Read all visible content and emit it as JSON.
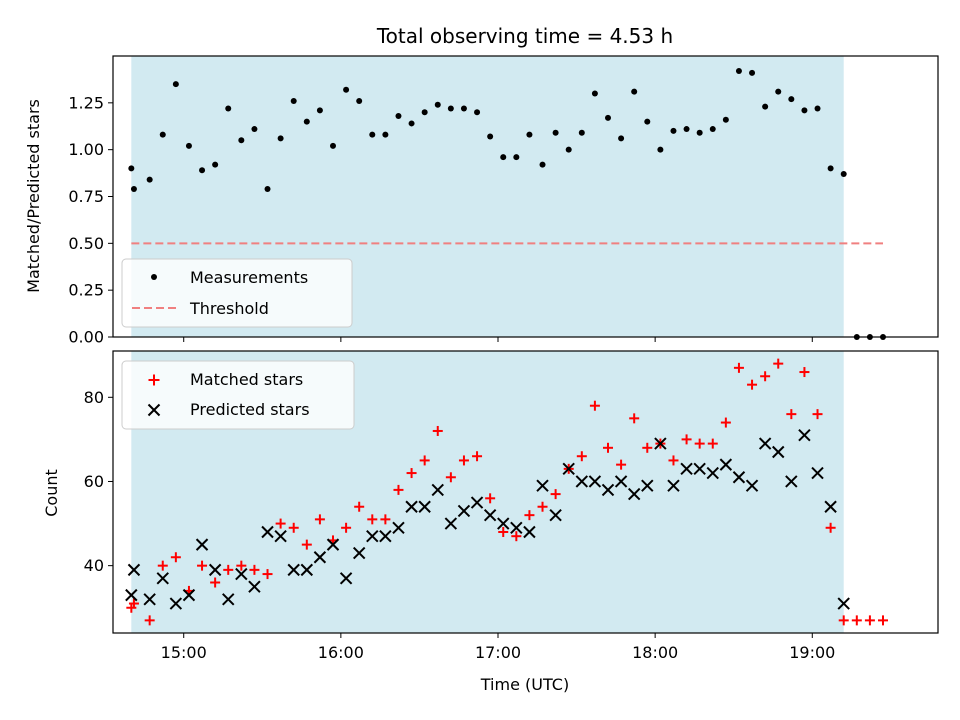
{
  "chart_data": [
    {
      "type": "scatter",
      "title": "Total observing time = 4.53 h",
      "xlabel": "",
      "ylabel": "Matched/Predicted stars",
      "xlim": [
        "14:33",
        "19:48"
      ],
      "ylim": [
        0,
        1.5
      ],
      "yticks": [
        0.0,
        0.25,
        0.5,
        0.75,
        1.0,
        1.25
      ],
      "ytick_labels": [
        "0.00",
        "0.25",
        "0.50",
        "0.75",
        "1.00",
        "1.25"
      ],
      "xticks": [
        "15:00",
        "16:00",
        "17:00",
        "18:00",
        "19:00"
      ],
      "shaded_span": {
        "x_start": "14:40",
        "x_end": "19:12",
        "color": "#add8e6"
      },
      "legend": {
        "position": "lower-left"
      },
      "series": [
        {
          "name": "Measurements",
          "marker": "dot",
          "color": "#000000",
          "points": [
            [
              "14:40",
              0.9
            ],
            [
              "14:41",
              0.79
            ],
            [
              "14:47",
              0.84
            ],
            [
              "14:52",
              1.08
            ],
            [
              "14:57",
              1.35
            ],
            [
              "15:02",
              1.02
            ],
            [
              "15:07",
              0.89
            ],
            [
              "15:12",
              0.92
            ],
            [
              "15:17",
              1.22
            ],
            [
              "15:22",
              1.05
            ],
            [
              "15:27",
              1.11
            ],
            [
              "15:32",
              0.79
            ],
            [
              "15:37",
              1.06
            ],
            [
              "15:42",
              1.26
            ],
            [
              "15:47",
              1.15
            ],
            [
              "15:52",
              1.21
            ],
            [
              "15:57",
              1.02
            ],
            [
              "16:02",
              1.32
            ],
            [
              "16:07",
              1.26
            ],
            [
              "16:12",
              1.08
            ],
            [
              "16:17",
              1.08
            ],
            [
              "16:22",
              1.18
            ],
            [
              "16:27",
              1.14
            ],
            [
              "16:32",
              1.2
            ],
            [
              "16:37",
              1.24
            ],
            [
              "16:42",
              1.22
            ],
            [
              "16:47",
              1.22
            ],
            [
              "16:52",
              1.2
            ],
            [
              "16:57",
              1.07
            ],
            [
              "17:02",
              0.96
            ],
            [
              "17:07",
              0.96
            ],
            [
              "17:12",
              1.08
            ],
            [
              "17:17",
              0.92
            ],
            [
              "17:22",
              1.09
            ],
            [
              "17:27",
              1.0
            ],
            [
              "17:32",
              1.09
            ],
            [
              "17:37",
              1.3
            ],
            [
              "17:42",
              1.17
            ],
            [
              "17:47",
              1.06
            ],
            [
              "17:52",
              1.31
            ],
            [
              "17:57",
              1.15
            ],
            [
              "18:02",
              1.0
            ],
            [
              "18:07",
              1.1
            ],
            [
              "18:12",
              1.11
            ],
            [
              "18:17",
              1.09
            ],
            [
              "18:22",
              1.11
            ],
            [
              "18:27",
              1.16
            ],
            [
              "18:32",
              1.42
            ],
            [
              "18:37",
              1.41
            ],
            [
              "18:42",
              1.23
            ],
            [
              "18:47",
              1.31
            ],
            [
              "18:52",
              1.27
            ],
            [
              "18:57",
              1.21
            ],
            [
              "19:02",
              1.22
            ],
            [
              "19:07",
              0.9
            ],
            [
              "19:12",
              0.87
            ],
            [
              "19:17",
              0.0
            ],
            [
              "19:22",
              0.0
            ],
            [
              "19:27",
              0.0
            ]
          ]
        },
        {
          "name": "Threshold",
          "marker": "dashed-line",
          "color": "#f08080",
          "points": [
            [
              "14:40",
              0.5
            ],
            [
              "19:27",
              0.5
            ]
          ]
        }
      ]
    },
    {
      "type": "scatter",
      "title": "",
      "xlabel": "Time (UTC)",
      "ylabel": "Count",
      "xlim": [
        "14:33",
        "19:48"
      ],
      "ylim": [
        24,
        91
      ],
      "yticks": [
        40,
        60,
        80
      ],
      "ytick_labels": [
        "40",
        "60",
        "80"
      ],
      "xticks": [
        "15:00",
        "16:00",
        "17:00",
        "18:00",
        "19:00"
      ],
      "xtick_labels": [
        "15:00",
        "16:00",
        "17:00",
        "18:00",
        "19:00"
      ],
      "shaded_span": {
        "x_start": "14:40",
        "x_end": "19:12",
        "color": "#add8e6"
      },
      "legend": {
        "position": "upper-left"
      },
      "series": [
        {
          "name": "Matched stars",
          "marker": "plus",
          "color": "#ff0000",
          "points": [
            [
              "14:40",
              30
            ],
            [
              "14:41",
              31
            ],
            [
              "14:47",
              27
            ],
            [
              "14:52",
              40
            ],
            [
              "14:57",
              42
            ],
            [
              "15:02",
              34
            ],
            [
              "15:07",
              40
            ],
            [
              "15:12",
              36
            ],
            [
              "15:17",
              39
            ],
            [
              "15:22",
              40
            ],
            [
              "15:27",
              39
            ],
            [
              "15:32",
              38
            ],
            [
              "15:37",
              50
            ],
            [
              "15:42",
              49
            ],
            [
              "15:47",
              45
            ],
            [
              "15:52",
              51
            ],
            [
              "15:57",
              46
            ],
            [
              "16:02",
              49
            ],
            [
              "16:07",
              54
            ],
            [
              "16:12",
              51
            ],
            [
              "16:17",
              51
            ],
            [
              "16:22",
              58
            ],
            [
              "16:27",
              62
            ],
            [
              "16:32",
              65
            ],
            [
              "16:37",
              72
            ],
            [
              "16:42",
              61
            ],
            [
              "16:47",
              65
            ],
            [
              "16:52",
              66
            ],
            [
              "16:57",
              56
            ],
            [
              "17:02",
              48
            ],
            [
              "17:07",
              47
            ],
            [
              "17:12",
              52
            ],
            [
              "17:17",
              54
            ],
            [
              "17:22",
              57
            ],
            [
              "17:27",
              63
            ],
            [
              "17:32",
              66
            ],
            [
              "17:37",
              78
            ],
            [
              "17:42",
              68
            ],
            [
              "17:47",
              64
            ],
            [
              "17:52",
              75
            ],
            [
              "17:57",
              68
            ],
            [
              "18:02",
              69
            ],
            [
              "18:07",
              65
            ],
            [
              "18:12",
              70
            ],
            [
              "18:17",
              69
            ],
            [
              "18:22",
              69
            ],
            [
              "18:27",
              74
            ],
            [
              "18:32",
              87
            ],
            [
              "18:37",
              83
            ],
            [
              "18:42",
              85
            ],
            [
              "18:47",
              88
            ],
            [
              "18:52",
              76
            ],
            [
              "18:57",
              86
            ],
            [
              "19:02",
              76
            ],
            [
              "19:07",
              49
            ],
            [
              "19:12",
              27
            ],
            [
              "19:17",
              27
            ],
            [
              "19:22",
              27
            ],
            [
              "19:27",
              27
            ]
          ]
        },
        {
          "name": "Predicted stars",
          "marker": "x",
          "color": "#000000",
          "points": [
            [
              "14:40",
              33
            ],
            [
              "14:41",
              39
            ],
            [
              "14:47",
              32
            ],
            [
              "14:52",
              37
            ],
            [
              "14:57",
              31
            ],
            [
              "15:02",
              33
            ],
            [
              "15:07",
              45
            ],
            [
              "15:12",
              39
            ],
            [
              "15:17",
              32
            ],
            [
              "15:22",
              38
            ],
            [
              "15:27",
              35
            ],
            [
              "15:32",
              48
            ],
            [
              "15:37",
              47
            ],
            [
              "15:42",
              39
            ],
            [
              "15:47",
              39
            ],
            [
              "15:52",
              42
            ],
            [
              "15:57",
              45
            ],
            [
              "16:02",
              37
            ],
            [
              "16:07",
              43
            ],
            [
              "16:12",
              47
            ],
            [
              "16:17",
              47
            ],
            [
              "16:22",
              49
            ],
            [
              "16:27",
              54
            ],
            [
              "16:32",
              54
            ],
            [
              "16:37",
              58
            ],
            [
              "16:42",
              50
            ],
            [
              "16:47",
              53
            ],
            [
              "16:52",
              55
            ],
            [
              "16:57",
              52
            ],
            [
              "17:02",
              50
            ],
            [
              "17:07",
              49
            ],
            [
              "17:12",
              48
            ],
            [
              "17:17",
              59
            ],
            [
              "17:22",
              52
            ],
            [
              "17:27",
              63
            ],
            [
              "17:32",
              60
            ],
            [
              "17:37",
              60
            ],
            [
              "17:42",
              58
            ],
            [
              "17:47",
              60
            ],
            [
              "17:52",
              57
            ],
            [
              "17:57",
              59
            ],
            [
              "18:02",
              69
            ],
            [
              "18:07",
              59
            ],
            [
              "18:12",
              63
            ],
            [
              "18:17",
              63
            ],
            [
              "18:22",
              62
            ],
            [
              "18:27",
              64
            ],
            [
              "18:32",
              61
            ],
            [
              "18:37",
              59
            ],
            [
              "18:42",
              69
            ],
            [
              "18:47",
              67
            ],
            [
              "18:52",
              60
            ],
            [
              "18:57",
              71
            ],
            [
              "19:02",
              62
            ],
            [
              "19:07",
              54
            ],
            [
              "19:12",
              31
            ]
          ]
        }
      ]
    }
  ]
}
